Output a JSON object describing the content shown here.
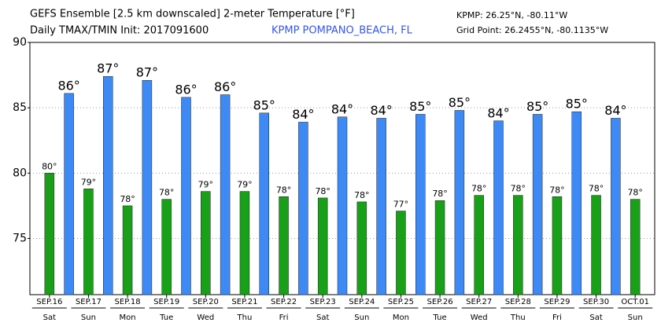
{
  "chart_data": {
    "type": "bar",
    "title": "GEFS Ensemble [2.5 km downscaled] 2-meter Temperature [°F]",
    "subtitle": "Daily TMAX/TMIN Init: 2017091600",
    "station": "KPMP POMPANO_BEACH, FL",
    "station_coords": "KPMP: 26.25°N, -80.11°W",
    "grid_point": "Grid Point: 26.2455°N, -80.1135°W",
    "categories": [
      "SEP.16",
      "SEP.17",
      "SEP.18",
      "SEP.19",
      "SEP.20",
      "SEP.21",
      "SEP.22",
      "SEP.23",
      "SEP.24",
      "SEP.25",
      "SEP.26",
      "SEP.27",
      "SEP.28",
      "SEP.29",
      "SEP.30",
      "OCT.01"
    ],
    "weekdays": [
      "Sat",
      "Sun",
      "Mon",
      "Tue",
      "Wed",
      "Thu",
      "Fri",
      "Sat",
      "Sun",
      "Mon",
      "Tue",
      "Wed",
      "Thu",
      "Fri",
      "Sat",
      "Sun"
    ],
    "series": [
      {
        "color": "#3d8af7",
        "values": [
          null,
          86.1,
          87.4,
          87.1,
          85.8,
          86.0,
          84.6,
          83.9,
          84.3,
          84.2,
          84.5,
          84.8,
          84.0,
          84.5,
          84.7,
          84.2
        ],
        "value_labels": [
          null,
          "86°",
          "87°",
          "87°",
          "86°",
          "86°",
          "85°",
          "84°",
          "84°",
          "84°",
          "85°",
          "85°",
          "84°",
          "85°",
          "85°",
          "84°"
        ]
      },
      {
        "color": "#18a018",
        "values": [
          80.0,
          78.8,
          77.5,
          78.0,
          78.6,
          78.6,
          78.2,
          78.1,
          77.8,
          77.1,
          77.9,
          78.3,
          78.3,
          78.2,
          78.3,
          78.0
        ],
        "value_labels": [
          "80°",
          "79°",
          "78°",
          "78°",
          "79°",
          "79°",
          "78°",
          "78°",
          "78°",
          "77°",
          "78°",
          "78°",
          "78°",
          "78°",
          "78°",
          "78°"
        ]
      }
    ],
    "ylim": [
      70.7,
      90
    ],
    "yticks": [
      75,
      80,
      85,
      90
    ],
    "grid": true
  }
}
